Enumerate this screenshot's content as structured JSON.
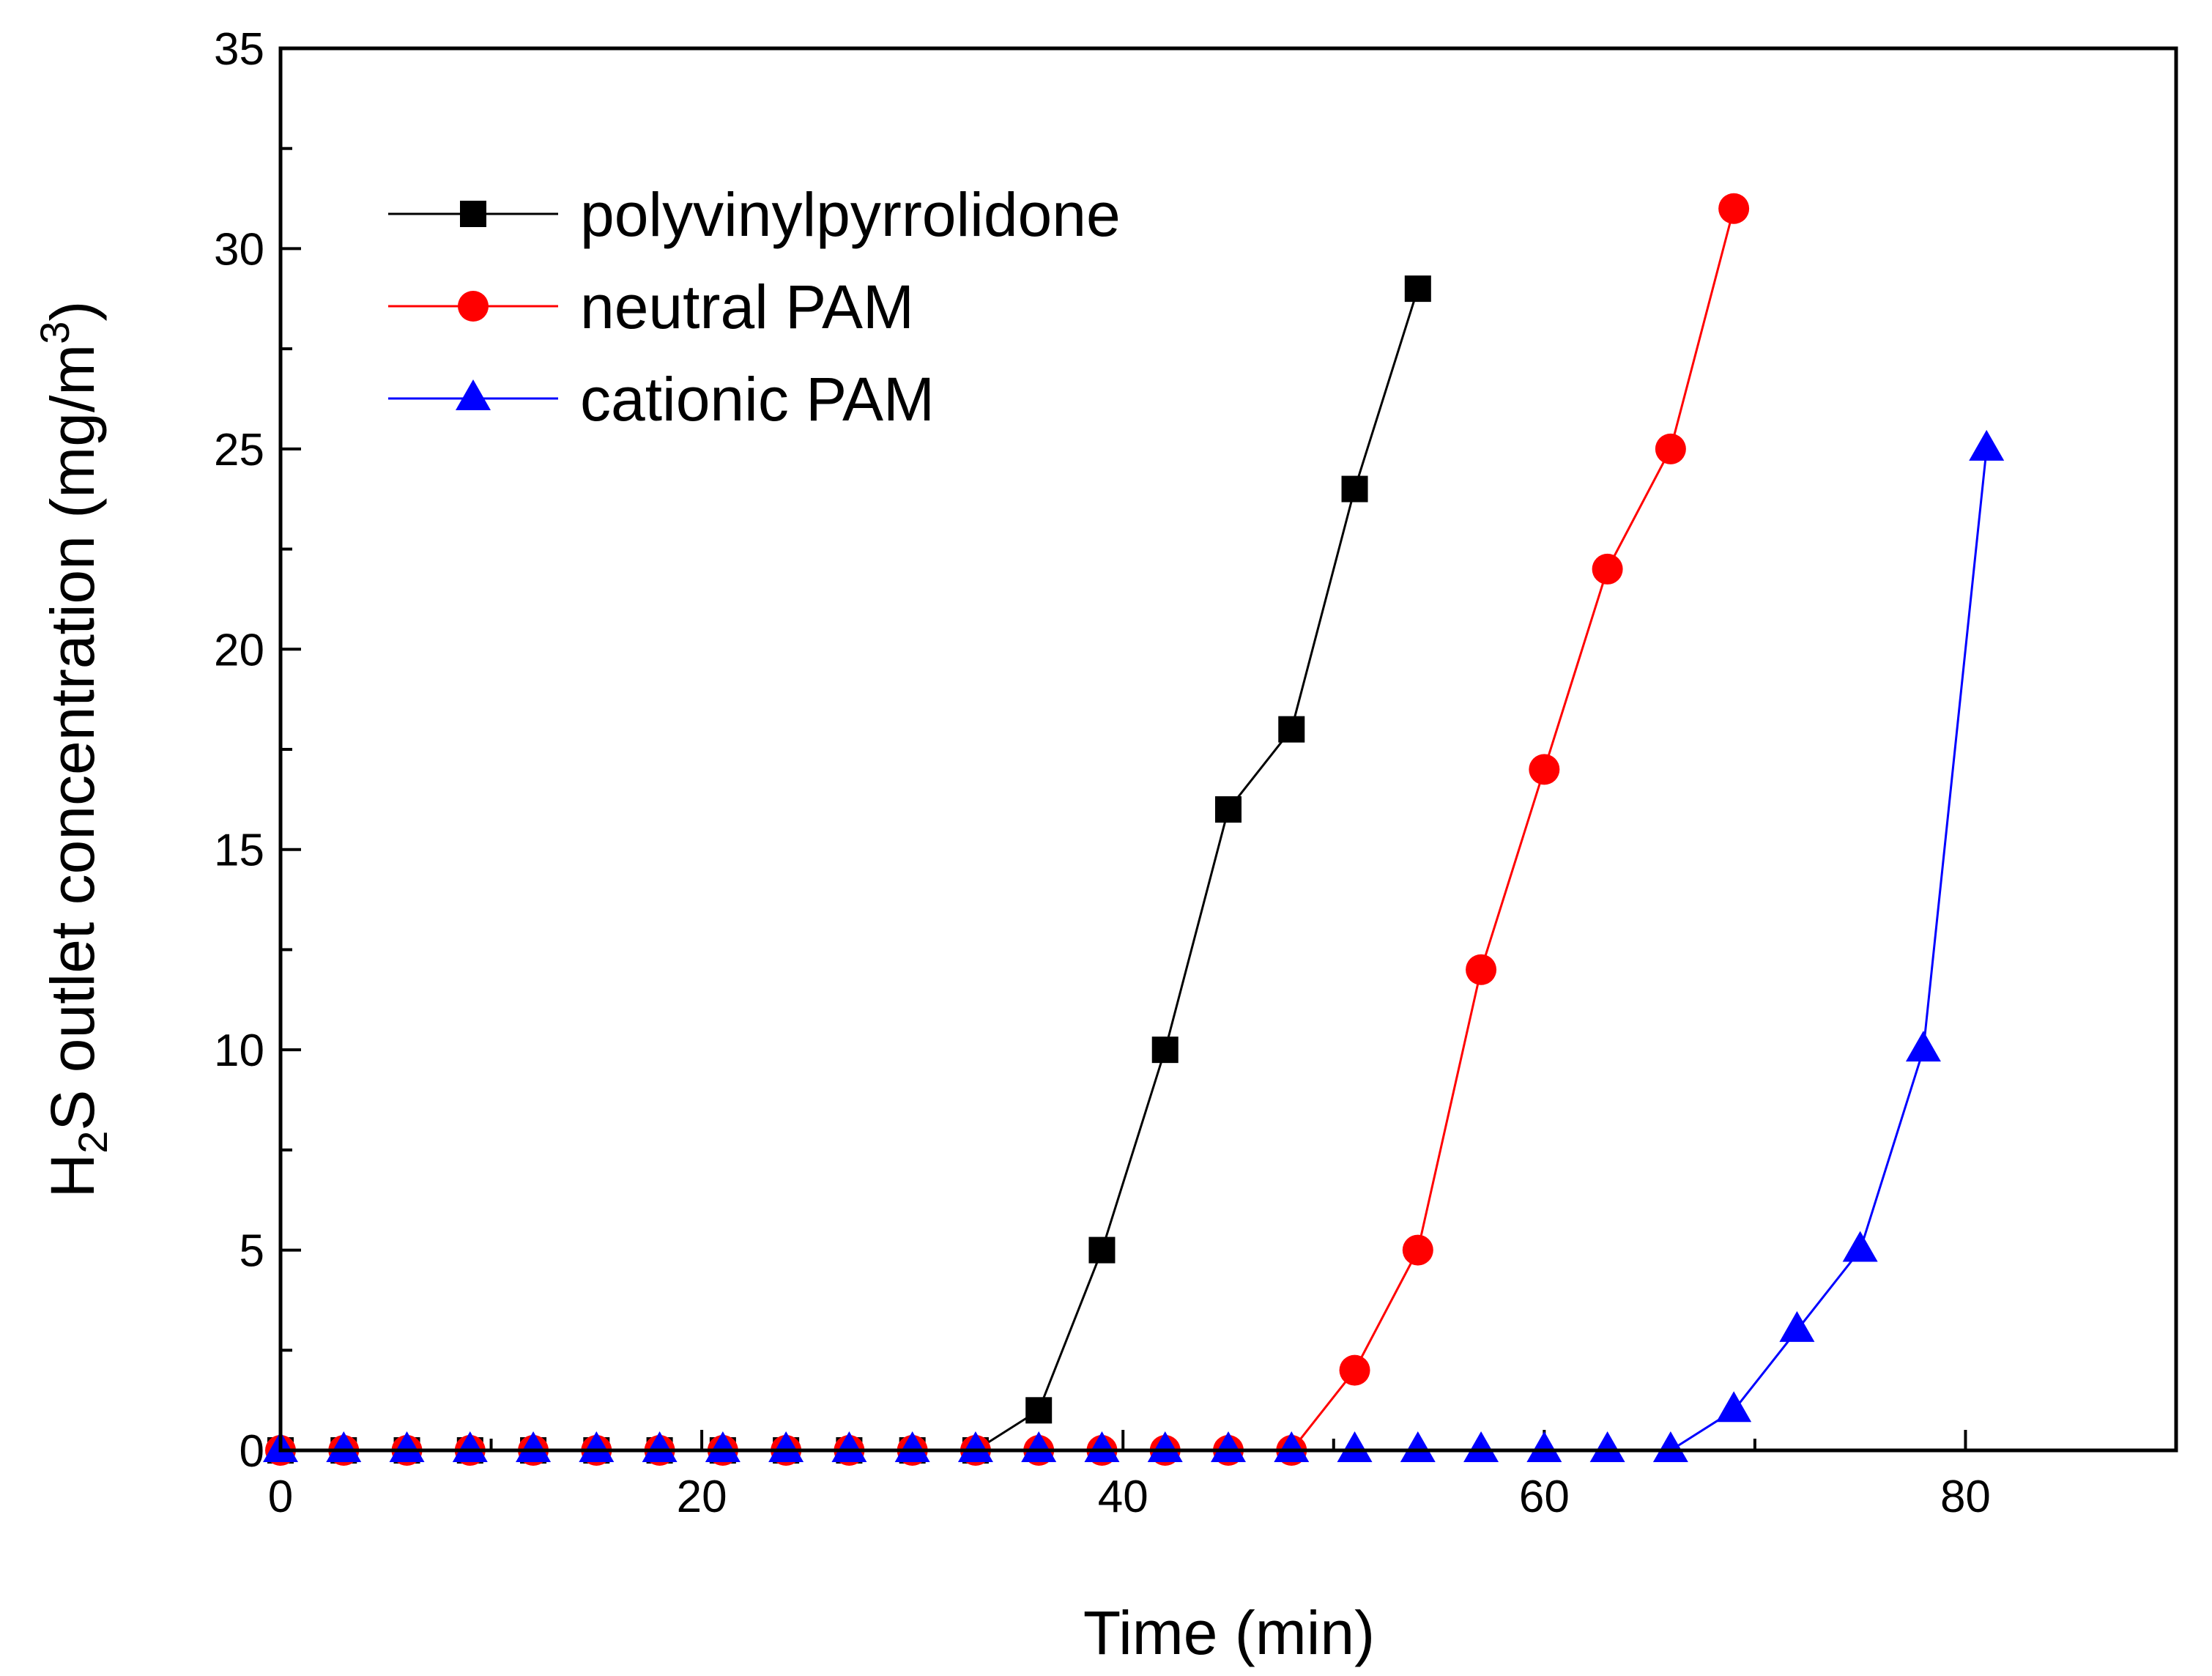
{
  "chart_data": {
    "type": "line",
    "title": "",
    "xlabel": "Time (min)",
    "ylabel": {
      "prefix": "H",
      "sub": "2",
      "mid": "S outlet concentration (mg/m",
      "sup": "3",
      "suffix": ")"
    },
    "xlim": [
      0,
      90
    ],
    "ylim": [
      0,
      35
    ],
    "xticks": [
      0,
      20,
      40,
      60,
      80
    ],
    "yticks": [
      0,
      5,
      10,
      15,
      20,
      25,
      30,
      35
    ],
    "xtick_labels": [
      "0",
      "20",
      "40",
      "60",
      "80"
    ],
    "ytick_labels": [
      "0",
      "5",
      "10",
      "15",
      "20",
      "25",
      "30",
      "35"
    ],
    "legend_position": "top-left",
    "grid": false,
    "series": [
      {
        "name": "polyvinylpyrrolidone",
        "color": "#000000",
        "marker": "square",
        "x": [
          0,
          3,
          6,
          9,
          12,
          15,
          18,
          21,
          24,
          27,
          30,
          33,
          36,
          39,
          42,
          45,
          48,
          51,
          54
        ],
        "y": [
          0,
          0,
          0,
          0,
          0,
          0,
          0,
          0,
          0,
          0,
          0,
          0,
          1,
          5,
          10,
          16,
          18,
          24,
          29
        ]
      },
      {
        "name": "neutral PAM",
        "color": "#ff0000",
        "marker": "circle",
        "x": [
          0,
          3,
          6,
          9,
          12,
          15,
          18,
          21,
          24,
          27,
          30,
          33,
          36,
          39,
          42,
          45,
          48,
          51,
          54,
          57,
          60,
          63,
          66,
          69
        ],
        "y": [
          0,
          0,
          0,
          0,
          0,
          0,
          0,
          0,
          0,
          0,
          0,
          0,
          0,
          0,
          0,
          0,
          0,
          2,
          5,
          12,
          17,
          22,
          25,
          31
        ]
      },
      {
        "name": "cationic PAM",
        "color": "#0000ff",
        "marker": "triangle",
        "x": [
          0,
          3,
          6,
          9,
          12,
          15,
          18,
          21,
          24,
          27,
          30,
          33,
          36,
          39,
          42,
          45,
          48,
          51,
          54,
          57,
          60,
          63,
          66,
          69,
          72,
          75,
          78,
          81
        ],
        "y": [
          0,
          0,
          0,
          0,
          0,
          0,
          0,
          0,
          0,
          0,
          0,
          0,
          0,
          0,
          0,
          0,
          0,
          0,
          0,
          0,
          0,
          0,
          0,
          1,
          3,
          5,
          10,
          25
        ]
      }
    ]
  }
}
